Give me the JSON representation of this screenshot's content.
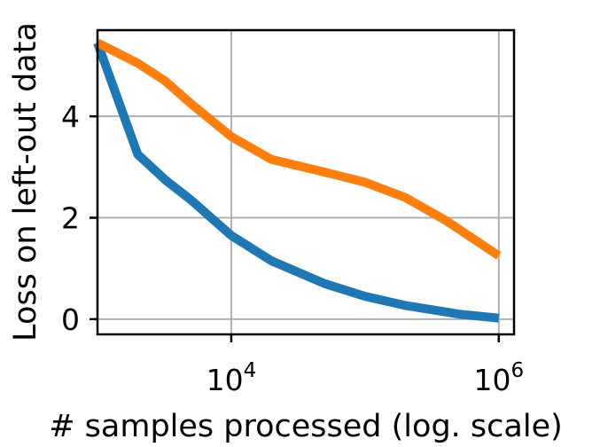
{
  "chart_data": {
    "type": "line",
    "title": "",
    "xlabel": "# samples processed (log. scale)",
    "ylabel": "Loss on left-out data",
    "x_scale": "log",
    "xlim": [
      1000,
      1300000
    ],
    "ylim": [
      -0.3,
      5.7
    ],
    "grid": true,
    "x_ticks": [
      {
        "value": 10000,
        "base": "10",
        "exp": "4"
      },
      {
        "value": 1000000,
        "base": "10",
        "exp": "6"
      }
    ],
    "y_ticks": [
      {
        "value": 0,
        "label": "0"
      },
      {
        "value": 2,
        "label": "2"
      },
      {
        "value": 4,
        "label": "4"
      }
    ],
    "series": [
      {
        "color": "#1f77b4",
        "x": [
          1000,
          2000,
          3200,
          5000,
          10000,
          20000,
          50000,
          100000,
          200000,
          500000,
          1000000
        ],
        "y": [
          5.45,
          3.25,
          2.75,
          2.35,
          1.65,
          1.15,
          0.7,
          0.45,
          0.27,
          0.1,
          0.02
        ]
      },
      {
        "color": "#ff7f0e",
        "x": [
          1000,
          2000,
          3200,
          5000,
          10000,
          20000,
          50000,
          100000,
          200000,
          400000,
          1000000
        ],
        "y": [
          5.45,
          5.05,
          4.7,
          4.25,
          3.6,
          3.15,
          2.9,
          2.7,
          2.4,
          1.95,
          1.25
        ]
      }
    ]
  }
}
